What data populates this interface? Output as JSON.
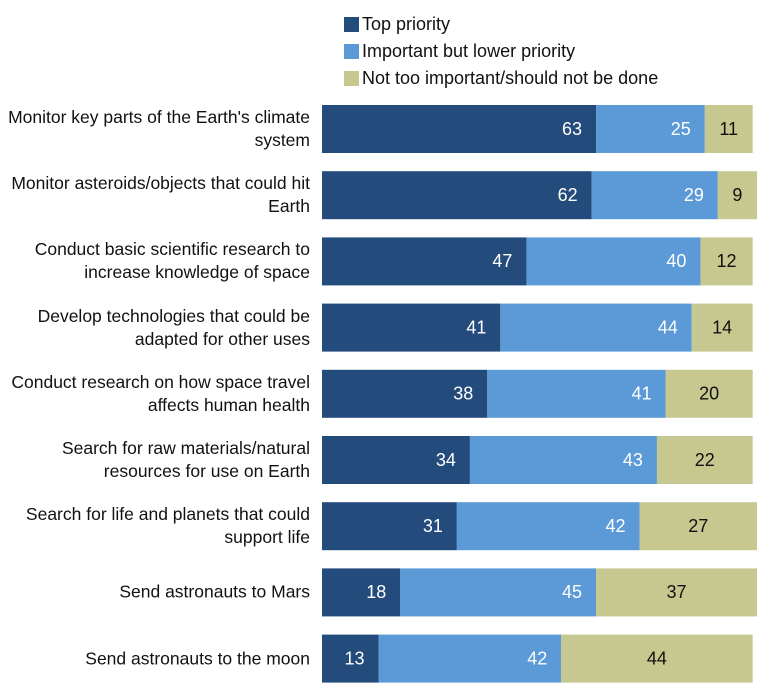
{
  "chart_data": {
    "type": "stacked-bar",
    "orientation": "horizontal",
    "categories": [
      "Monitor key parts of the Earth's climate system",
      "Monitor asteroids/objects that could hit Earth",
      "Conduct basic scientific research to increase knowledge of space",
      "Develop technologies that could be adapted for other uses",
      "Conduct research on how space travel affects human health",
      "Search for raw materials/natural resources for use on Earth",
      "Search for life and planets that could support life",
      "Send astronauts to Mars",
      "Send astronauts to the moon"
    ],
    "series": [
      {
        "name": "Top priority",
        "color": "#234b7c",
        "values": [
          63,
          62,
          47,
          41,
          38,
          34,
          31,
          18,
          13
        ]
      },
      {
        "name": "Important but lower priority",
        "color": "#5b9ad6",
        "values": [
          25,
          29,
          40,
          44,
          41,
          43,
          42,
          45,
          42
        ]
      },
      {
        "name": "Not too important/should not be done",
        "color": "#c6c88f",
        "values": [
          11,
          9,
          12,
          14,
          20,
          22,
          27,
          37,
          44
        ]
      }
    ],
    "xlim": [
      0,
      100
    ]
  }
}
